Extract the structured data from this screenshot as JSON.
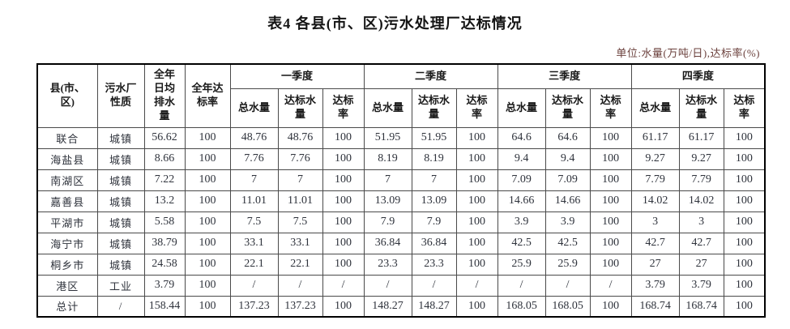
{
  "title": "表4 各县(市、区)污水处理厂达标情况",
  "unit_note": "单位:水量(万吨/日),达标率(%)",
  "table": {
    "corner_header": "县(市、区)",
    "fixed_headers": [
      "污水厂性质",
      "全年日均排水量",
      "全年达标率"
    ],
    "quarter_groups": [
      "一季度",
      "二季度",
      "三季度",
      "四季度"
    ],
    "sub_headers": [
      "总水量",
      "达标水量",
      "达标率"
    ],
    "rows": [
      {
        "name": "联合",
        "plant_type": "城镇",
        "annual_daily_avg": "56.62",
        "annual_rate": "100",
        "quarters": [
          [
            "48.76",
            "48.76",
            "100"
          ],
          [
            "51.95",
            "51.95",
            "100"
          ],
          [
            "64.6",
            "64.6",
            "100"
          ],
          [
            "61.17",
            "61.17",
            "100"
          ]
        ]
      },
      {
        "name": "海盐县",
        "plant_type": "城镇",
        "annual_daily_avg": "8.66",
        "annual_rate": "100",
        "quarters": [
          [
            "7.76",
            "7.76",
            "100"
          ],
          [
            "8.19",
            "8.19",
            "100"
          ],
          [
            "9.4",
            "9.4",
            "100"
          ],
          [
            "9.27",
            "9.27",
            "100"
          ]
        ]
      },
      {
        "name": "南湖区",
        "plant_type": "城镇",
        "annual_daily_avg": "7.22",
        "annual_rate": "100",
        "quarters": [
          [
            "7",
            "7",
            "100"
          ],
          [
            "7",
            "7",
            "100"
          ],
          [
            "7.09",
            "7.09",
            "100"
          ],
          [
            "7.79",
            "7.79",
            "100"
          ]
        ]
      },
      {
        "name": "嘉善县",
        "plant_type": "城镇",
        "annual_daily_avg": "13.2",
        "annual_rate": "100",
        "quarters": [
          [
            "11.01",
            "11.01",
            "100"
          ],
          [
            "13.09",
            "13.09",
            "100"
          ],
          [
            "14.66",
            "14.66",
            "100"
          ],
          [
            "14.02",
            "14.02",
            "100"
          ]
        ]
      },
      {
        "name": "平湖市",
        "plant_type": "城镇",
        "annual_daily_avg": "5.58",
        "annual_rate": "100",
        "quarters": [
          [
            "7.5",
            "7.5",
            "100"
          ],
          [
            "7.9",
            "7.9",
            "100"
          ],
          [
            "3.9",
            "3.9",
            "100"
          ],
          [
            "3",
            "3",
            "100"
          ]
        ]
      },
      {
        "name": "海宁市",
        "plant_type": "城镇",
        "annual_daily_avg": "38.79",
        "annual_rate": "100",
        "quarters": [
          [
            "33.1",
            "33.1",
            "100"
          ],
          [
            "36.84",
            "36.84",
            "100"
          ],
          [
            "42.5",
            "42.5",
            "100"
          ],
          [
            "42.7",
            "42.7",
            "100"
          ]
        ]
      },
      {
        "name": "桐乡市",
        "plant_type": "城镇",
        "annual_daily_avg": "24.58",
        "annual_rate": "100",
        "quarters": [
          [
            "22.1",
            "22.1",
            "100"
          ],
          [
            "23.3",
            "23.3",
            "100"
          ],
          [
            "25.9",
            "25.9",
            "100"
          ],
          [
            "27",
            "27",
            "100"
          ]
        ]
      },
      {
        "name": "港区",
        "plant_type": "工业",
        "annual_daily_avg": "3.79",
        "annual_rate": "100",
        "quarters": [
          [
            "/",
            "/",
            "/"
          ],
          [
            "/",
            "/",
            "/"
          ],
          [
            "/",
            "/",
            "/"
          ],
          [
            "3.79",
            "3.79",
            "100"
          ]
        ]
      },
      {
        "name": "总计",
        "plant_type": "/",
        "annual_daily_avg": "158.44",
        "annual_rate": "100",
        "quarters": [
          [
            "137.23",
            "137.23",
            "100"
          ],
          [
            "148.27",
            "148.27",
            "100"
          ],
          [
            "168.05",
            "168.05",
            "100"
          ],
          [
            "168.74",
            "168.74",
            "100"
          ]
        ]
      }
    ]
  }
}
